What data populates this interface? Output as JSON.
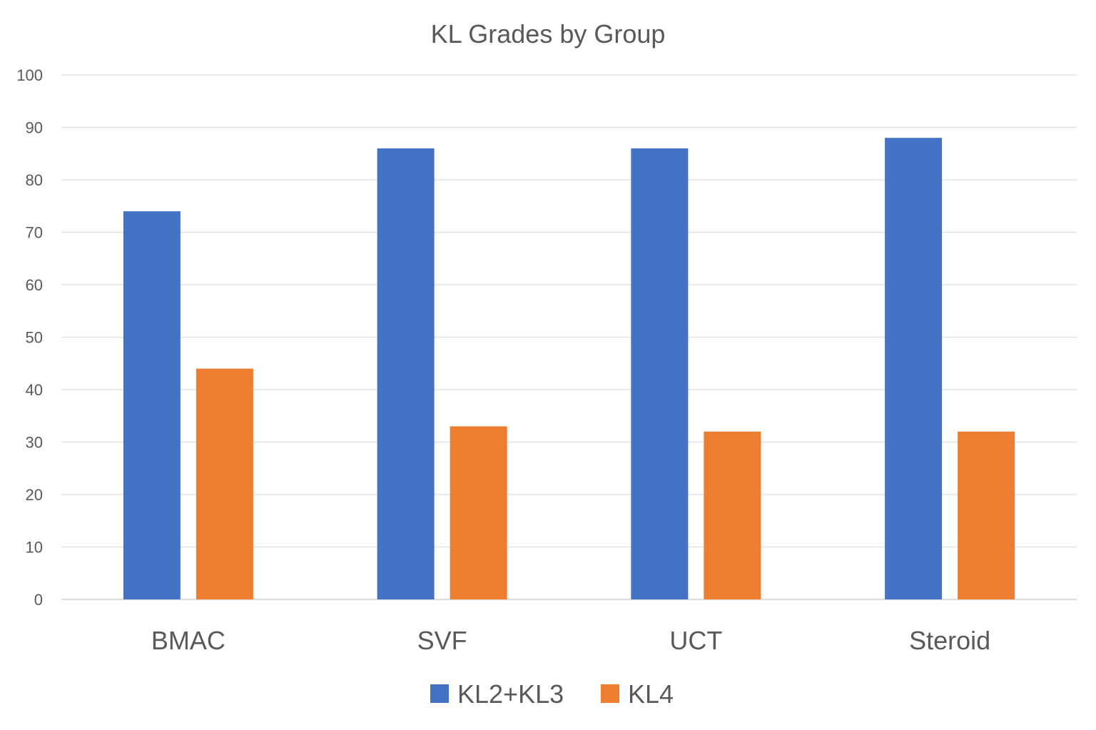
{
  "chart_data": {
    "type": "bar",
    "title": "KL Grades by Group",
    "xlabel": "",
    "ylabel": "",
    "categories": [
      "BMAC",
      "SVF",
      "UCT",
      "Steroid"
    ],
    "series": [
      {
        "name": "KL2+KL3",
        "color": "#4472C4",
        "values": [
          74,
          86,
          86,
          88
        ]
      },
      {
        "name": "KL4",
        "color": "#ED7D31",
        "values": [
          44,
          33,
          32,
          32
        ]
      }
    ],
    "ylim": [
      0,
      100
    ],
    "yticks": [
      0,
      10,
      20,
      30,
      40,
      50,
      60,
      70,
      80,
      90,
      100
    ],
    "grid": true,
    "legend": "bottom"
  }
}
